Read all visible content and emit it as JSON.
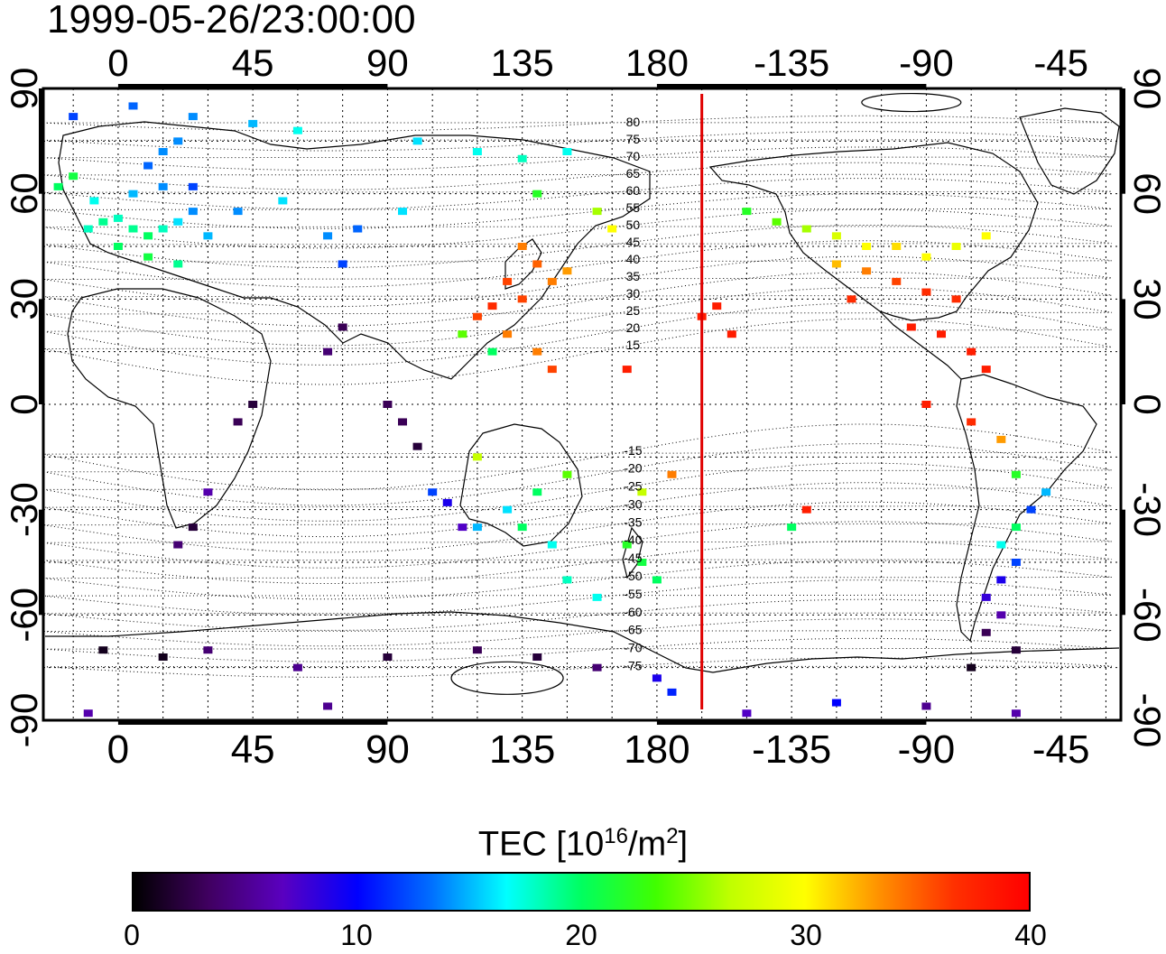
{
  "timestamp": "1999-05-26/23:00:00",
  "map": {
    "type": "global TEC map",
    "projection": "equirectangular",
    "lon_center": 180,
    "lat_range": [
      -90,
      90
    ],
    "top_lon_ticks": [
      "0",
      "45",
      "90",
      "135",
      "180",
      "-135",
      "-90",
      "-45"
    ],
    "bottom_lon_ticks": [
      "0",
      "45",
      "90",
      "135",
      "180",
      "-135",
      "-90",
      "-45"
    ],
    "left_lat_ticks": [
      "90",
      "60",
      "30",
      "0",
      "-30",
      "-60",
      "-90"
    ],
    "right_lat_ticks": [
      "90",
      "60",
      "30",
      "0",
      "-30",
      "-60",
      "-90"
    ],
    "terminator_lon": 195,
    "terminator_color": "#e00000",
    "magnetic_contour_labels": [
      "80",
      "75",
      "70",
      "65",
      "60",
      "55",
      "50",
      "45",
      "40",
      "35",
      "30",
      "25",
      "20",
      "15",
      "-15",
      "-20",
      "-25",
      "-30",
      "-35",
      "-40",
      "-45",
      "-50",
      "-55",
      "-60",
      "-65",
      "-70",
      "-75"
    ]
  },
  "colorbar": {
    "title_main": "TEC  [10",
    "title_exp1": "16",
    "title_mid": "/m",
    "title_exp2": "2",
    "title_end": "]",
    "min": 0,
    "max": 40,
    "tick_labels": [
      "0",
      "10",
      "20",
      "30",
      "40"
    ],
    "colors": [
      "#000000",
      "#400060",
      "#5a00c0",
      "#0000ff",
      "#0070ff",
      "#00ffff",
      "#00ff60",
      "#40ff00",
      "#c0ff00",
      "#ffff00",
      "#ff9000",
      "#ff3000",
      "#ff0000"
    ]
  },
  "chart_data": {
    "type": "heatmap",
    "x_unit": "longitude (deg)",
    "y_unit": "latitude (deg)",
    "value_unit": "TEC [10^16/m^2]",
    "points": [
      [
        -10,
        50,
        18
      ],
      [
        -5,
        52,
        19
      ],
      [
        0,
        53,
        18
      ],
      [
        5,
        50,
        19
      ],
      [
        10,
        48,
        20
      ],
      [
        15,
        50,
        18
      ],
      [
        20,
        52,
        16
      ],
      [
        25,
        55,
        14
      ],
      [
        -8,
        58,
        17
      ],
      [
        5,
        60,
        15
      ],
      [
        15,
        62,
        14
      ],
      [
        25,
        62,
        12
      ],
      [
        10,
        68,
        13
      ],
      [
        15,
        72,
        14
      ],
      [
        20,
        75,
        14
      ],
      [
        -20,
        62,
        20
      ],
      [
        -15,
        65,
        21
      ],
      [
        0,
        45,
        20
      ],
      [
        10,
        42,
        21
      ],
      [
        20,
        40,
        19
      ],
      [
        30,
        48,
        15
      ],
      [
        40,
        55,
        14
      ],
      [
        55,
        58,
        16
      ],
      [
        70,
        48,
        14
      ],
      [
        80,
        50,
        13
      ],
      [
        75,
        40,
        12
      ],
      [
        95,
        55,
        16
      ],
      [
        -15,
        82,
        12
      ],
      [
        5,
        85,
        13
      ],
      [
        25,
        82,
        14
      ],
      [
        45,
        80,
        15
      ],
      [
        60,
        78,
        17
      ],
      [
        100,
        75,
        16
      ],
      [
        120,
        72,
        17
      ],
      [
        135,
        70,
        18
      ],
      [
        150,
        72,
        17
      ],
      [
        140,
        60,
        22
      ],
      [
        160,
        55,
        26
      ],
      [
        165,
        50,
        30
      ],
      [
        135,
        45,
        34
      ],
      [
        140,
        40,
        35
      ],
      [
        130,
        35,
        36
      ],
      [
        135,
        30,
        36
      ],
      [
        125,
        28,
        37
      ],
      [
        145,
        35,
        34
      ],
      [
        150,
        38,
        33
      ],
      [
        120,
        25,
        36
      ],
      [
        130,
        20,
        34
      ],
      [
        115,
        20,
        24
      ],
      [
        125,
        15,
        20
      ],
      [
        140,
        15,
        34
      ],
      [
        145,
        10,
        36
      ],
      [
        170,
        10,
        38
      ],
      [
        195,
        25,
        38
      ],
      [
        205,
        20,
        38
      ],
      [
        200,
        28,
        38
      ],
      [
        210,
        55,
        22
      ],
      [
        220,
        52,
        24
      ],
      [
        230,
        50,
        26
      ],
      [
        240,
        48,
        28
      ],
      [
        250,
        45,
        30
      ],
      [
        260,
        45,
        31
      ],
      [
        270,
        42,
        30
      ],
      [
        280,
        45,
        29
      ],
      [
        290,
        48,
        30
      ],
      [
        240,
        40,
        32
      ],
      [
        250,
        38,
        34
      ],
      [
        260,
        35,
        36
      ],
      [
        270,
        32,
        37
      ],
      [
        280,
        30,
        37
      ],
      [
        245,
        30,
        37
      ],
      [
        265,
        22,
        38
      ],
      [
        275,
        20,
        38
      ],
      [
        285,
        15,
        38
      ],
      [
        290,
        10,
        38
      ],
      [
        270,
        0,
        38
      ],
      [
        285,
        -5,
        37
      ],
      [
        295,
        -10,
        33
      ],
      [
        300,
        -20,
        22
      ],
      [
        310,
        -25,
        15
      ],
      [
        305,
        -30,
        12
      ],
      [
        300,
        -35,
        20
      ],
      [
        295,
        -40,
        17
      ],
      [
        300,
        -45,
        12
      ],
      [
        295,
        -50,
        9
      ],
      [
        290,
        -55,
        8
      ],
      [
        295,
        -60,
        6
      ],
      [
        290,
        -65,
        3
      ],
      [
        300,
        -70,
        2
      ],
      [
        285,
        -75,
        1
      ],
      [
        230,
        -30,
        38
      ],
      [
        225,
        -35,
        20
      ],
      [
        185,
        -20,
        34
      ],
      [
        175,
        -25,
        27
      ],
      [
        170,
        -40,
        22
      ],
      [
        175,
        -45,
        21
      ],
      [
        180,
        -50,
        20
      ],
      [
        160,
        -55,
        17
      ],
      [
        150,
        -50,
        18
      ],
      [
        145,
        -40,
        17
      ],
      [
        135,
        -35,
        20
      ],
      [
        120,
        -35,
        15
      ],
      [
        115,
        -35,
        7
      ],
      [
        110,
        -28,
        9
      ],
      [
        105,
        -25,
        12
      ],
      [
        130,
        -30,
        16
      ],
      [
        140,
        -25,
        20
      ],
      [
        150,
        -20,
        24
      ],
      [
        120,
        -15,
        27
      ],
      [
        100,
        -12,
        2
      ],
      [
        95,
        -5,
        3
      ],
      [
        90,
        0,
        3
      ],
      [
        70,
        15,
        4
      ],
      [
        75,
        22,
        3
      ],
      [
        45,
        0,
        2
      ],
      [
        40,
        -5,
        3
      ],
      [
        30,
        -25,
        6
      ],
      [
        25,
        -35,
        2
      ],
      [
        20,
        -40,
        4
      ],
      [
        -5,
        -70,
        1
      ],
      [
        15,
        -72,
        1
      ],
      [
        30,
        -70,
        4
      ],
      [
        60,
        -75,
        5
      ],
      [
        90,
        -72,
        2
      ],
      [
        120,
        -70,
        3
      ],
      [
        140,
        -72,
        2
      ],
      [
        160,
        -75,
        4
      ],
      [
        180,
        -78,
        9
      ],
      [
        185,
        -82,
        11
      ],
      [
        210,
        -88,
        7
      ],
      [
        240,
        -85,
        10
      ],
      [
        270,
        -86,
        5
      ],
      [
        -10,
        -88,
        6
      ],
      [
        70,
        -86,
        5
      ],
      [
        300,
        -88,
        6
      ]
    ]
  }
}
